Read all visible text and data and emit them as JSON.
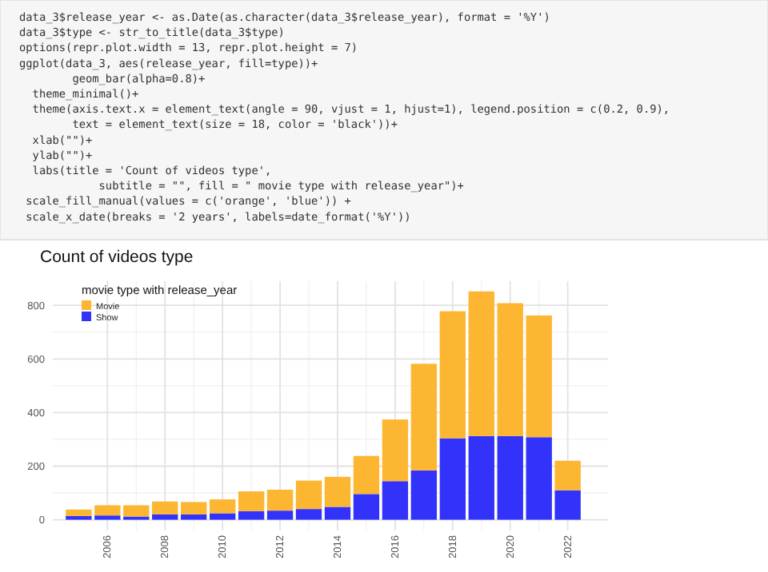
{
  "chart_data": {
    "type": "bar",
    "title": "Count of videos type",
    "legend_title": "movie type with release_year",
    "stacked": true,
    "x": [
      2005,
      2006,
      2007,
      2008,
      2009,
      2010,
      2011,
      2012,
      2013,
      2014,
      2015,
      2016,
      2017,
      2018,
      2019,
      2020,
      2021,
      2022
    ],
    "series": [
      {
        "name": "Show",
        "color": "#3232fb",
        "values": [
          14,
          16,
          12,
          20,
          20,
          24,
          32,
          34,
          40,
          48,
          96,
          144,
          184,
          304,
          312,
          312,
          308,
          110
        ]
      },
      {
        "name": "Movie",
        "color": "#fdb631",
        "values": [
          24,
          38,
          42,
          48,
          46,
          52,
          74,
          78,
          106,
          112,
          142,
          230,
          398,
          474,
          540,
          496,
          454,
          110
        ]
      }
    ],
    "xlim": [
      2004.1,
      2023.4
    ],
    "xticks": [
      2006,
      2008,
      2010,
      2012,
      2014,
      2016,
      2018,
      2020,
      2022
    ],
    "ylim": [
      -40,
      890
    ],
    "yticks": [
      0,
      200,
      400,
      600,
      800
    ],
    "grid": true,
    "legend": "top left",
    "annotations": [
      "data_3$release_year <- as.Date(as.character(data_3$release_year), format = '%Y')",
      "data_3$type <- str_to_title(data_3$type)",
      "options(repr.plot.width = 13, repr.plot.height = 7)",
      "ggplot(data_3, aes(release_year, fill=type))+",
      "        geom_bar(alpha=0.8)+",
      "  theme_minimal()+",
      "  theme(axis.text.x = element_text(angle = 90, vjust = 1, hjust=1), legend.position = c(0.2, 0.9),",
      "        text = element_text(size = 18, color = 'black'))+",
      "  xlab(\"\")+",
      "  ylab(\"\")+",
      "  labs(title = 'Count of videos type',",
      "            subtitle = \"\", fill = \" movie type with release_year\")+",
      " scale_fill_manual(values = c('orange', 'blue')) +",
      " scale_x_date(breaks = '2 years', labels=date_format('%Y'))"
    ]
  }
}
